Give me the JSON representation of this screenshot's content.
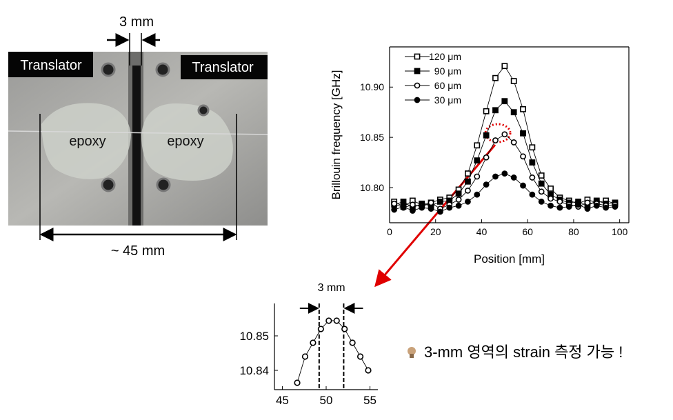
{
  "photo": {
    "labels": [
      "Translator",
      "Translator",
      "epoxy",
      "epoxy"
    ],
    "gap_label": "3 mm",
    "length_label": "~ 45 mm"
  },
  "chart_data": [
    {
      "type": "line",
      "xlabel": "Position [mm]",
      "ylabel": "Brillouin frequency [GHz]",
      "x": [
        2,
        6,
        10,
        14,
        18,
        22,
        26,
        30,
        34,
        38,
        42,
        46,
        50,
        54,
        58,
        62,
        66,
        70,
        74,
        78,
        82,
        86,
        90,
        94,
        98
      ],
      "series": [
        {
          "name": "120 μm",
          "color": "#000000",
          "marker": "square-open",
          "values": [
            10.786,
            10.781,
            10.787,
            10.783,
            10.785,
            10.788,
            10.79,
            10.798,
            10.814,
            10.842,
            10.876,
            10.909,
            10.921,
            10.906,
            10.878,
            10.84,
            10.812,
            10.799,
            10.79,
            10.787,
            10.784,
            10.788,
            10.785,
            10.787,
            10.784
          ]
        },
        {
          "name": "90 μm",
          "color": "#000000",
          "marker": "square-filled",
          "values": [
            10.783,
            10.786,
            10.78,
            10.784,
            10.782,
            10.786,
            10.787,
            10.794,
            10.806,
            10.827,
            10.852,
            10.877,
            10.886,
            10.875,
            10.854,
            10.825,
            10.804,
            10.793,
            10.788,
            10.785,
            10.786,
            10.782,
            10.787,
            10.784,
            10.785
          ]
        },
        {
          "name": "60 μm",
          "color": "#000000",
          "marker": "circle-open",
          "values": [
            10.784,
            10.78,
            10.783,
            10.781,
            10.785,
            10.779,
            10.783,
            10.788,
            10.797,
            10.811,
            10.83,
            10.847,
            10.853,
            10.845,
            10.831,
            10.81,
            10.796,
            10.789,
            10.786,
            10.783,
            10.781,
            10.785,
            10.784,
            10.782,
            10.783
          ]
        },
        {
          "name": "30 μm",
          "color": "#000000",
          "marker": "circle-filled",
          "values": [
            10.778,
            10.781,
            10.777,
            10.78,
            10.779,
            10.776,
            10.78,
            10.782,
            10.786,
            10.793,
            10.803,
            10.811,
            10.814,
            10.81,
            10.802,
            10.793,
            10.786,
            10.782,
            10.78,
            10.781,
            10.783,
            10.779,
            10.782,
            10.78,
            10.781
          ]
        }
      ],
      "xlim": [
        0,
        104
      ],
      "ylim": [
        10.765,
        10.94
      ],
      "xticks": [
        0,
        20,
        40,
        60,
        80,
        100
      ],
      "yticks": [
        {
          "value": 10.8,
          "label": "10.80"
        },
        10.85,
        {
          "value": 10.9,
          "label": "10.90"
        }
      ],
      "legend": "upper left"
    },
    {
      "type": "line",
      "annotation": "3 mm",
      "x": [
        46.7,
        47.6,
        48.5,
        49.4,
        50.3,
        51.2,
        52.1,
        53.0,
        53.9,
        54.8
      ],
      "values": [
        10.8364,
        10.844,
        10.848,
        10.852,
        10.8544,
        10.8544,
        10.852,
        10.848,
        10.844,
        10.84
      ],
      "color": "#000000",
      "marker": "circle-open",
      "vlines": [
        49.2,
        52.0
      ],
      "xlim": [
        44.1,
        55.9
      ],
      "ylim": [
        10.8344,
        10.8594
      ],
      "xticks": [
        45,
        50,
        55
      ],
      "yticks": [
        10.84,
        10.85
      ]
    }
  ],
  "note": "3-mm 영역의 strain 측정 가능 !"
}
